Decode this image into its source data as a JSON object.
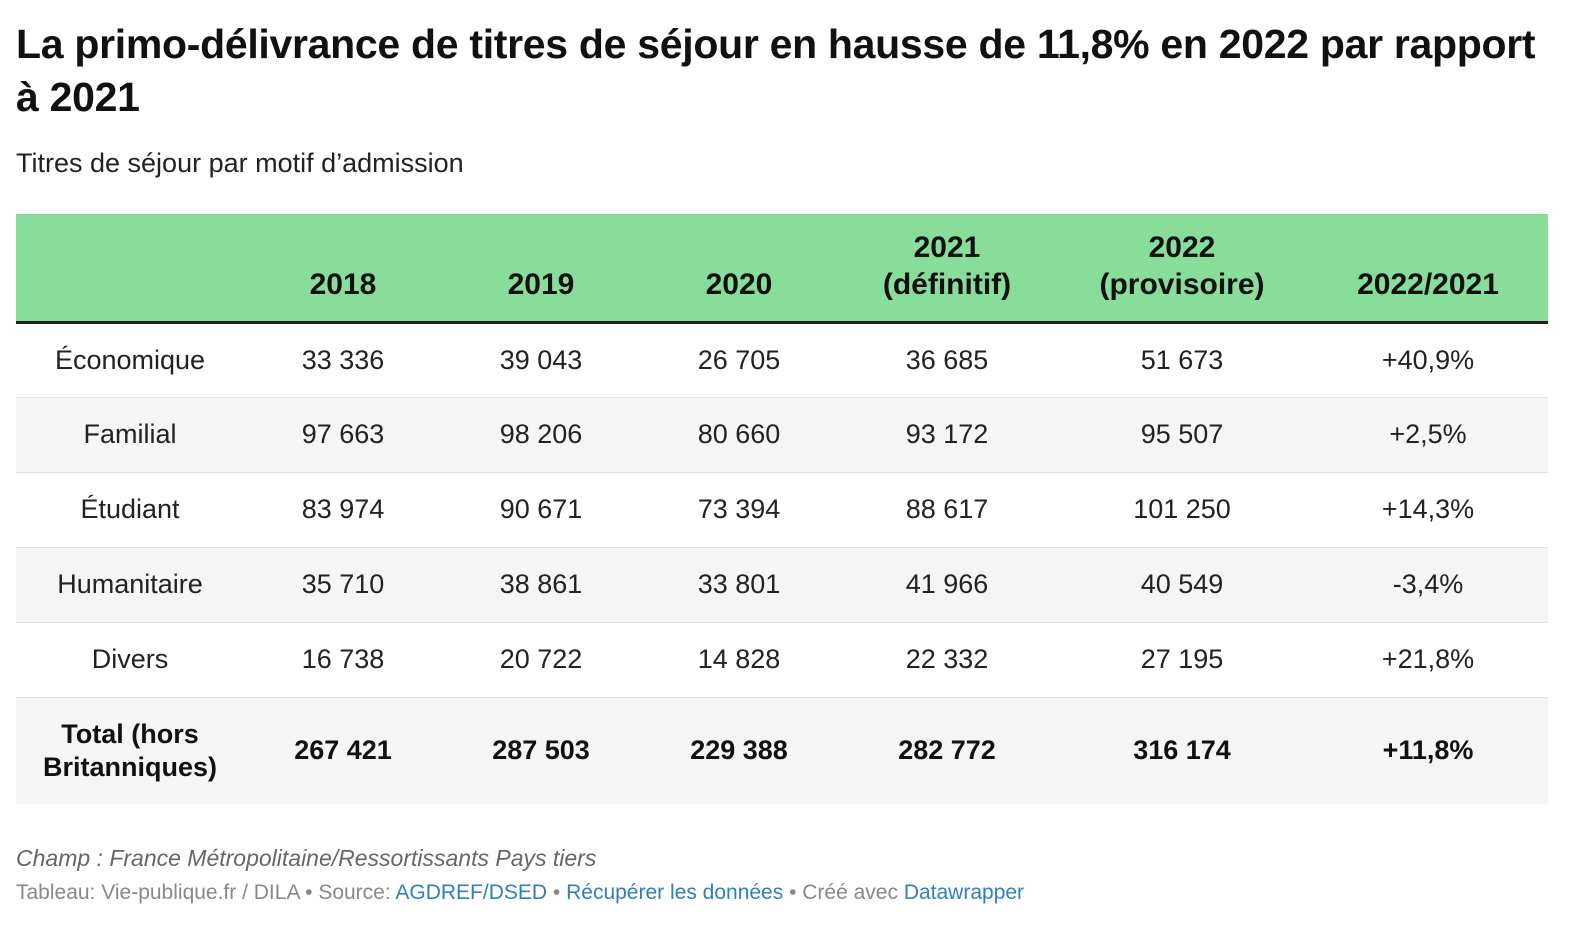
{
  "title": "La primo-délivrance de titres de séjour en hausse de 11,8% en 2022 par rapport à 2021",
  "subtitle": "Titres de séjour par motif d’admission",
  "chart_data": {
    "type": "table",
    "columns": [
      "",
      "2018",
      "2019",
      "2020",
      "2021 (définitif)",
      "2022 (provisoire)",
      "2022/2021"
    ],
    "header": {
      "c1": "2018",
      "c2": "2019",
      "c3": "2020",
      "c4": "2021",
      "c4b": "(définitif)",
      "c5": "2022",
      "c5b": "(provisoire)",
      "c6": "2022/2021"
    },
    "rows": [
      {
        "label": "Économique",
        "y2018": "33 336",
        "y2019": "39 043",
        "y2020": "26 705",
        "y2021": "36 685",
        "y2022": "51 673",
        "change": "+40,9%"
      },
      {
        "label": "Familial",
        "y2018": "97 663",
        "y2019": "98 206",
        "y2020": "80 660",
        "y2021": "93 172",
        "y2022": "95 507",
        "change": "+2,5%"
      },
      {
        "label": "Étudiant",
        "y2018": "83 974",
        "y2019": "90 671",
        "y2020": "73 394",
        "y2021": "88 617",
        "y2022": "101 250",
        "change": "+14,3%"
      },
      {
        "label": "Humanitaire",
        "y2018": "35 710",
        "y2019": "38 861",
        "y2020": "33 801",
        "y2021": "41 966",
        "y2022": "40 549",
        "change": "-3,4%"
      },
      {
        "label": "Divers",
        "y2018": "16 738",
        "y2019": "20 722",
        "y2020": "14 828",
        "y2021": "22 332",
        "y2022": "27 195",
        "change": "+21,8%"
      }
    ],
    "total": {
      "label_line1": "Total (hors",
      "label_line2": "Britanniques)",
      "y2018": "267 421",
      "y2019": "287 503",
      "y2020": "229 388",
      "y2021": "282 772",
      "y2022": "316 174",
      "change": "+11,8%"
    },
    "header_color": "#89dd9b"
  },
  "notes": {
    "scope": "Champ : France Métropolitaine/Ressortissants Pays tiers",
    "credit_prefix": "Tableau: Vie-publique.fr / DILA • Source: ",
    "source_link": "AGDREF/DSED",
    "separator1": " • ",
    "download_link": "Récupérer les données",
    "separator2": " • Créé avec ",
    "tool_link": "Datawrapper"
  }
}
